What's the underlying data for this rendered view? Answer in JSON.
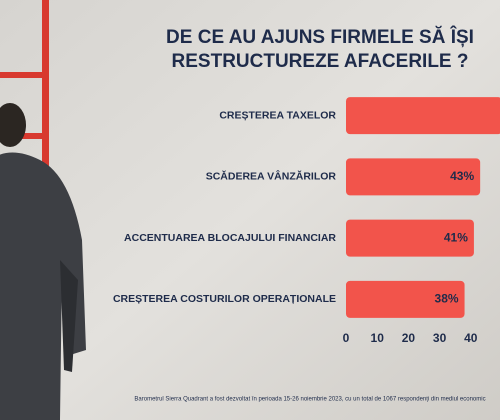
{
  "chart_data": {
    "type": "bar",
    "orientation": "horizontal",
    "title": [
      "DE CE AU AJUNS FIRMELE SĂ ÎȘI",
      "RESTRUCTUREZE AFACERILE ?"
    ],
    "categories": [
      "CREȘTEREA TAXELOR",
      "SCĂDEREA VÂNZĂRILOR",
      "ACCENTUAREA BLOCAJULUI FINANCIAR",
      "CREȘTEREA COSTURILOR OPERAȚIONALE"
    ],
    "values": [
      50,
      43,
      41,
      38
    ],
    "value_labels": [
      null,
      "43%",
      "41%",
      "38%"
    ],
    "color": "#f2544b",
    "xlim": [
      0,
      50
    ],
    "xticks": [
      0,
      10,
      20,
      30,
      40
    ],
    "footnote": "Barometrul Sierra Quadrant a fost dezvoltat în perioada 15-26 noiembrie 2023, cu un total de 1067 respondenți din mediul economic"
  }
}
